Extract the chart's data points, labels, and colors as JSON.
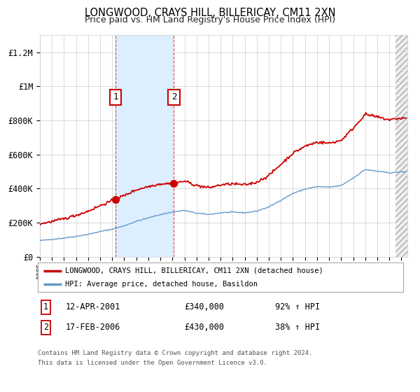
{
  "title": "LONGWOOD, CRAYS HILL, BILLERICAY, CM11 2XN",
  "subtitle": "Price paid vs. HM Land Registry's House Price Index (HPI)",
  "legend_line1": "LONGWOOD, CRAYS HILL, BILLERICAY, CM11 2XN (detached house)",
  "legend_line2": "HPI: Average price, detached house, Basildon",
  "sale1_date": "12-APR-2001",
  "sale1_price": 340000,
  "sale1_year": 2001.28,
  "sale2_date": "17-FEB-2006",
  "sale2_price": 430000,
  "sale2_year": 2006.12,
  "footer1": "Contains HM Land Registry data © Crown copyright and database right 2024.",
  "footer2": "This data is licensed under the Open Government Licence v3.0.",
  "red_color": "#cc0000",
  "blue_color": "#6699cc",
  "shade_color": "#ddeeff",
  "background_color": "#ffffff",
  "ylim": [
    0,
    1300000
  ],
  "xlim_start": 1995.0,
  "xlim_end": 2025.5,
  "yticks": [
    0,
    200000,
    400000,
    600000,
    800000,
    1000000,
    1200000
  ],
  "ylabels": [
    "£0",
    "£200K",
    "£400K",
    "£600K",
    "£800K",
    "£1M",
    "£1.2M"
  ]
}
